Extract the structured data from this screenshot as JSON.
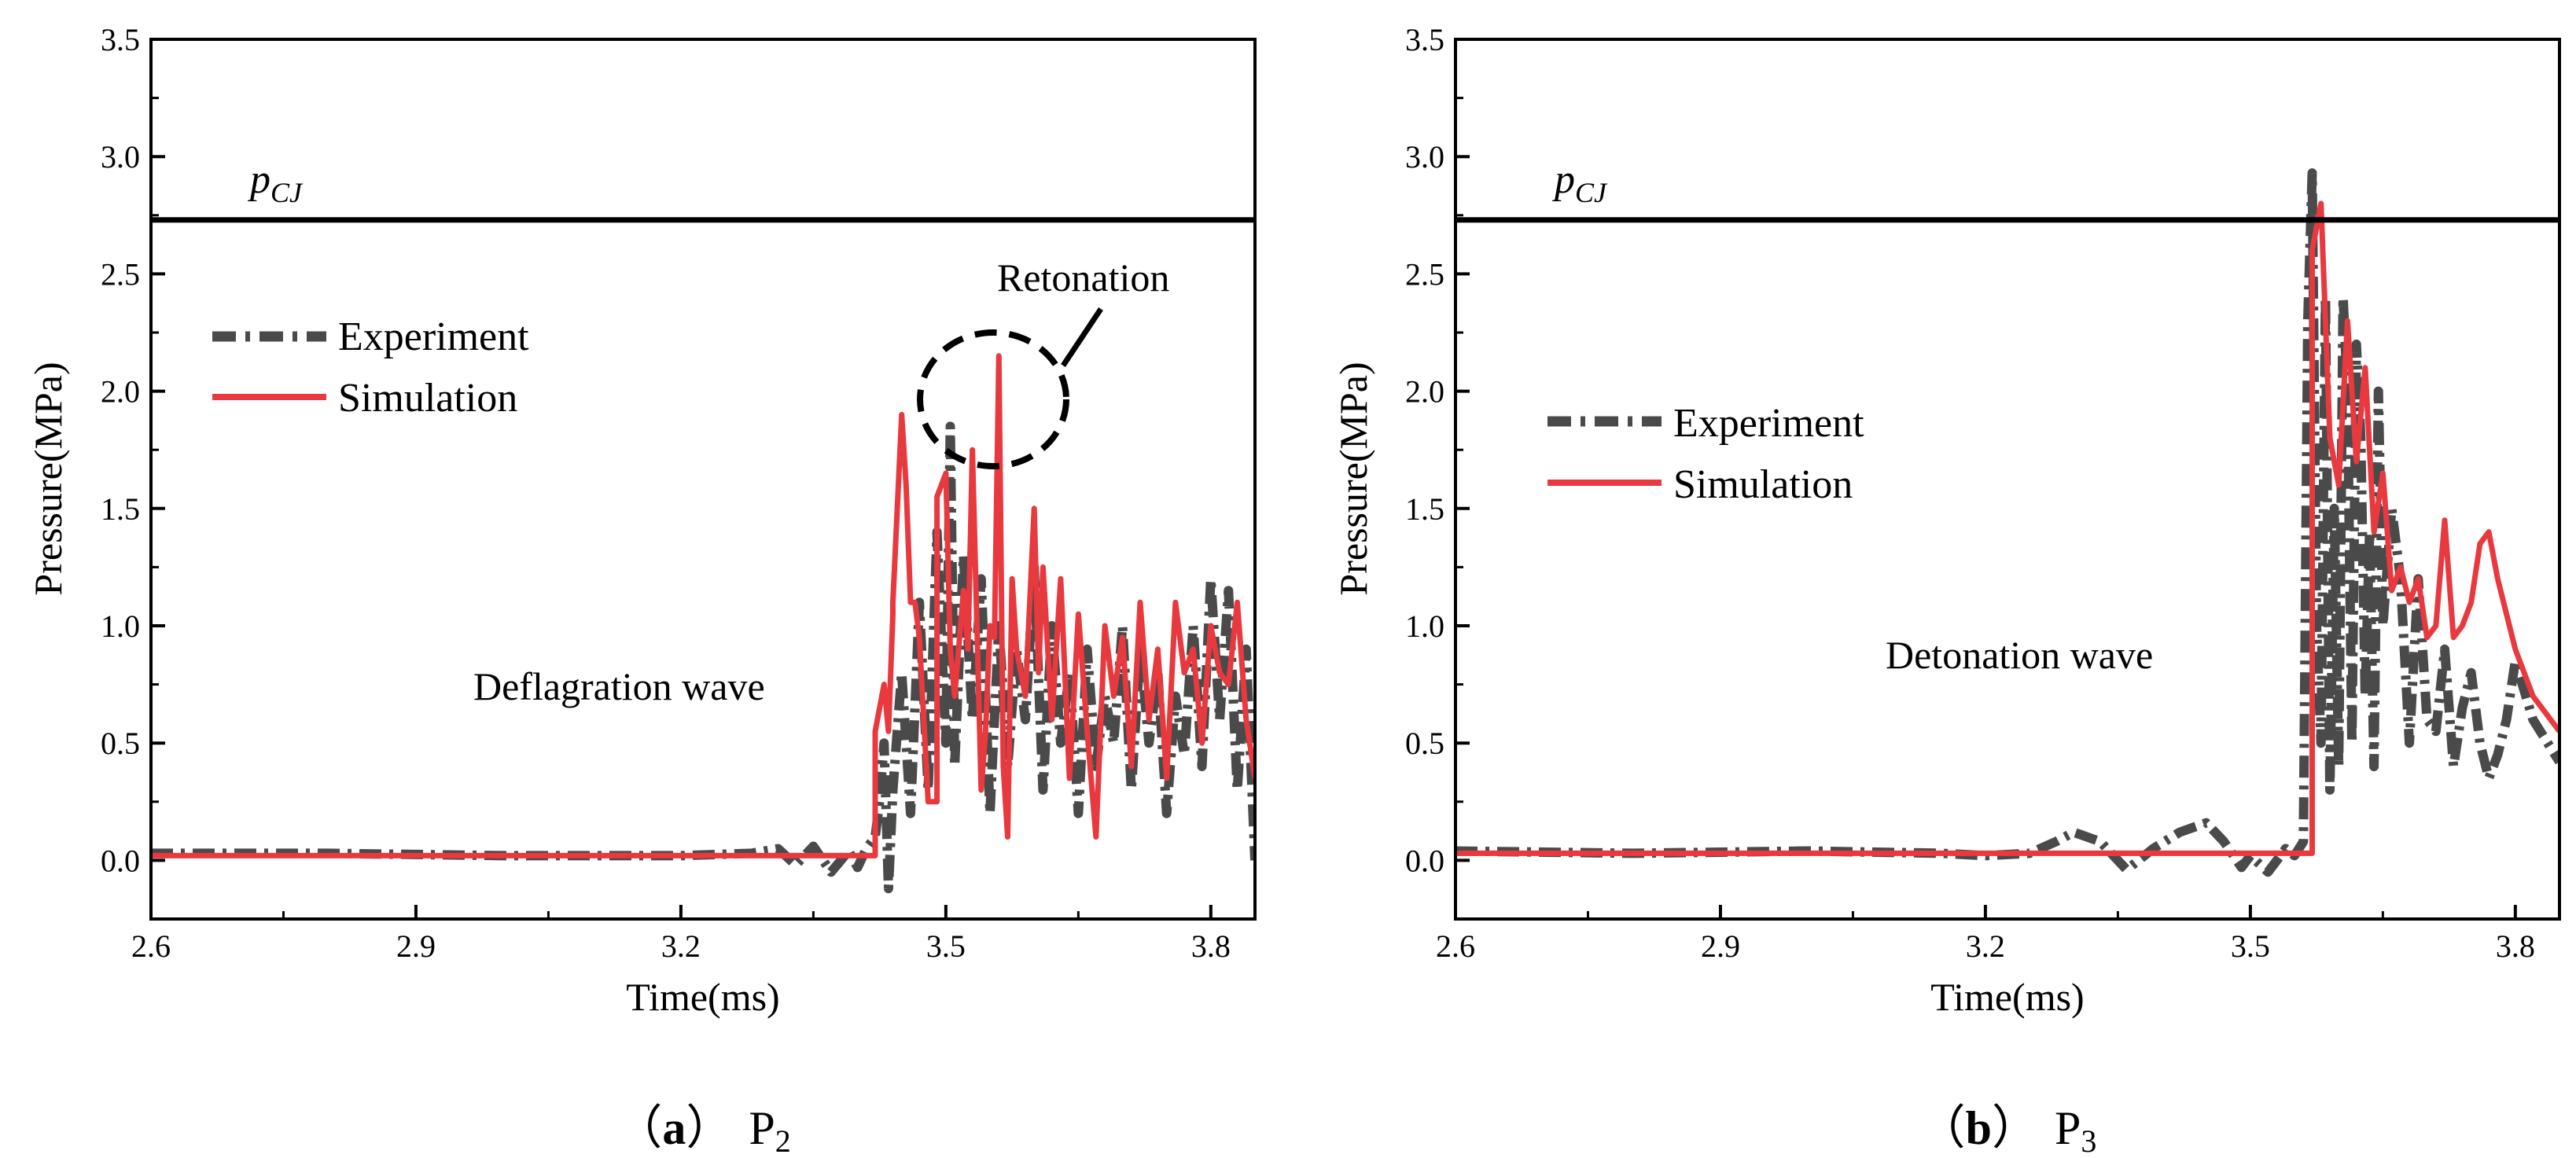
{
  "figure": {
    "colors": {
      "experiment": "#4a4a4a",
      "simulation": "#e8393f",
      "axes": "#000000",
      "pcj_line": "#000000"
    },
    "x_ticks": [
      "2.6",
      "2.9",
      "3.2",
      "3.5",
      "3.8"
    ],
    "y_ticks": [
      "0.0",
      "0.5",
      "1.0",
      "1.5",
      "2.0",
      "2.5",
      "3.0",
      "3.5"
    ]
  },
  "chart_data": [
    {
      "type": "line",
      "panel": "a",
      "caption": {
        "open": "（",
        "letter": "a",
        "close": "）",
        "label": "P",
        "sub": "2"
      },
      "xlabel": "Time(ms)",
      "ylabel": "Pressure(MPa)",
      "xlim": [
        2.6,
        3.85
      ],
      "ylim": [
        -0.25,
        3.5
      ],
      "pcj": {
        "value": 2.73,
        "label_main": "p",
        "label_sub": "CJ"
      },
      "legend": {
        "position": "upper-left",
        "entries": [
          "Experiment",
          "Simulation"
        ]
      },
      "annotations": {
        "wave": "Deflagration wave",
        "retonation": "Retonation"
      },
      "series": [
        {
          "name": "Experiment",
          "style": "dash-dot",
          "x": [
            2.6,
            2.8,
            3.0,
            3.2,
            3.28,
            3.31,
            3.33,
            3.35,
            3.37,
            3.39,
            3.4,
            3.41,
            3.42,
            3.425,
            3.43,
            3.435,
            3.44,
            3.45,
            3.46,
            3.47,
            3.48,
            3.49,
            3.5,
            3.505,
            3.51,
            3.52,
            3.53,
            3.54,
            3.55,
            3.56,
            3.57,
            3.58,
            3.59,
            3.6,
            3.61,
            3.62,
            3.63,
            3.64,
            3.65,
            3.66,
            3.67,
            3.68,
            3.69,
            3.7,
            3.71,
            3.72,
            3.73,
            3.74,
            3.75,
            3.76,
            3.77,
            3.78,
            3.79,
            3.8,
            3.81,
            3.82,
            3.83,
            3.84,
            3.85
          ],
          "y": [
            0.03,
            0.03,
            0.02,
            0.02,
            0.03,
            0.05,
            -0.02,
            0.06,
            -0.05,
            0.04,
            -0.03,
            0.05,
            0.1,
            0.25,
            0.5,
            -0.12,
            0.3,
            0.8,
            0.2,
            1.1,
            0.3,
            1.4,
            0.5,
            1.85,
            0.4,
            1.3,
            0.6,
            1.2,
            0.2,
            1.0,
            0.4,
            0.9,
            0.6,
            1.25,
            0.3,
            1.0,
            0.5,
            0.8,
            0.2,
            0.9,
            0.4,
            0.7,
            0.5,
            1.0,
            0.3,
            0.9,
            0.5,
            0.8,
            0.2,
            0.7,
            0.45,
            1.0,
            0.4,
            1.2,
            0.6,
            1.15,
            0.3,
            0.9,
            0.0
          ]
        },
        {
          "name": "Simulation",
          "style": "solid",
          "x": [
            2.6,
            3.0,
            3.2,
            3.3,
            3.42,
            3.42,
            3.43,
            3.435,
            3.44,
            3.44,
            3.45,
            3.455,
            3.46,
            3.465,
            3.47,
            3.475,
            3.48,
            3.49,
            3.49,
            3.5,
            3.505,
            3.51,
            3.52,
            3.525,
            3.53,
            3.54,
            3.545,
            3.55,
            3.555,
            3.56,
            3.565,
            3.57,
            3.575,
            3.58,
            3.59,
            3.6,
            3.605,
            3.61,
            3.62,
            3.63,
            3.64,
            3.65,
            3.66,
            3.67,
            3.68,
            3.69,
            3.7,
            3.71,
            3.72,
            3.73,
            3.74,
            3.75,
            3.76,
            3.77,
            3.78,
            3.79,
            3.8,
            3.81,
            3.82,
            3.83,
            3.84,
            3.85
          ],
          "y": [
            0.02,
            0.02,
            0.02,
            0.02,
            0.02,
            0.55,
            0.75,
            0.55,
            1.05,
            1.1,
            1.9,
            1.6,
            1.1,
            1.1,
            0.95,
            0.6,
            0.25,
            0.25,
            1.55,
            1.65,
            0.9,
            0.7,
            1.15,
            0.9,
            1.75,
            0.3,
            0.55,
            1.0,
            0.95,
            2.15,
            0.4,
            0.1,
            1.2,
            0.9,
            0.7,
            1.5,
            0.8,
            1.25,
            0.6,
            1.2,
            0.35,
            1.05,
            0.55,
            0.1,
            1.0,
            0.7,
            0.95,
            0.4,
            1.1,
            0.6,
            0.9,
            0.35,
            1.1,
            0.8,
            0.9,
            0.5,
            1.0,
            0.8,
            0.75,
            1.1,
            0.6,
            0.35
          ]
        }
      ]
    },
    {
      "type": "line",
      "panel": "b",
      "caption": {
        "open": "（",
        "letter": "b",
        "close": "）",
        "label": "P",
        "sub": "3"
      },
      "xlabel": "Time(ms)",
      "ylabel": "Pressure(MPa)",
      "xlim": [
        2.6,
        3.85
      ],
      "ylim": [
        -0.25,
        3.5
      ],
      "pcj": {
        "value": 2.73,
        "label_main": "p",
        "label_sub": "CJ"
      },
      "legend": {
        "position": "middle-left",
        "entries": [
          "Experiment",
          "Simulation"
        ]
      },
      "annotations": {
        "wave": "Detonation wave"
      },
      "series": [
        {
          "name": "Experiment",
          "style": "dash-dot",
          "x": [
            2.6,
            2.8,
            3.0,
            3.15,
            3.2,
            3.25,
            3.28,
            3.3,
            3.33,
            3.36,
            3.39,
            3.42,
            3.45,
            3.47,
            3.49,
            3.5,
            3.52,
            3.54,
            3.55,
            3.56,
            3.565,
            3.57,
            3.575,
            3.58,
            3.585,
            3.59,
            3.595,
            3.6,
            3.605,
            3.61,
            3.615,
            3.62,
            3.625,
            3.63,
            3.635,
            3.64,
            3.645,
            3.65,
            3.66,
            3.67,
            3.68,
            3.69,
            3.7,
            3.71,
            3.72,
            3.73,
            3.74,
            3.75,
            3.76,
            3.77,
            3.78,
            3.79,
            3.8,
            3.82,
            3.85
          ],
          "y": [
            0.04,
            0.03,
            0.04,
            0.03,
            0.02,
            0.03,
            0.08,
            0.12,
            0.08,
            -0.04,
            0.05,
            0.12,
            0.16,
            0.08,
            -0.03,
            0.02,
            -0.05,
            0.05,
            0.02,
            0.08,
            2.3,
            2.93,
            1.0,
            0.5,
            2.4,
            0.3,
            1.5,
            0.4,
            2.4,
            2.0,
            0.5,
            2.2,
            1.8,
            0.7,
            1.4,
            0.4,
            2.0,
            1.0,
            1.5,
            1.2,
            0.5,
            1.2,
            0.6,
            0.55,
            0.9,
            0.4,
            0.65,
            0.8,
            0.5,
            0.35,
            0.45,
            0.6,
            0.85,
            0.6,
            0.42
          ]
        },
        {
          "name": "Simulation",
          "style": "solid",
          "x": [
            2.6,
            3.0,
            3.3,
            3.5,
            3.57,
            3.57,
            3.58,
            3.59,
            3.6,
            3.61,
            3.62,
            3.63,
            3.64,
            3.65,
            3.66,
            3.67,
            3.68,
            3.69,
            3.7,
            3.71,
            3.72,
            3.73,
            3.74,
            3.75,
            3.76,
            3.77,
            3.78,
            3.79,
            3.8,
            3.82,
            3.85
          ],
          "y": [
            0.03,
            0.03,
            0.03,
            0.03,
            0.03,
            2.6,
            2.8,
            1.8,
            1.6,
            2.3,
            1.7,
            2.1,
            1.4,
            1.65,
            1.15,
            1.25,
            1.1,
            1.2,
            0.95,
            1.0,
            1.45,
            0.95,
            1.0,
            1.1,
            1.35,
            1.4,
            1.2,
            1.05,
            0.9,
            0.7,
            0.55
          ]
        }
      ]
    }
  ]
}
